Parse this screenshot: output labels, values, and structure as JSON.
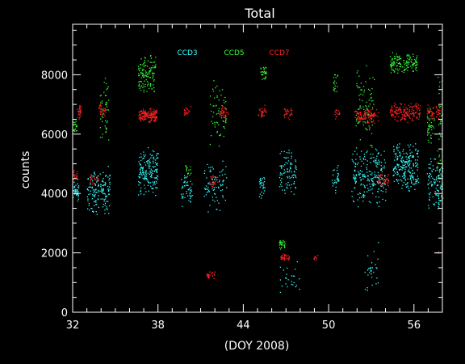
{
  "chart_data": {
    "type": "scatter",
    "title": "Total",
    "xlabel": "(DOY 2008)",
    "ylabel": "counts",
    "xlim": [
      32,
      58
    ],
    "ylim": [
      0,
      9700
    ],
    "x_ticks": [
      32,
      38,
      44,
      50,
      56
    ],
    "y_ticks": [
      0,
      2000,
      4000,
      6000,
      8000
    ],
    "x_tick_labels": [
      "32",
      "38",
      "44",
      "50",
      "56"
    ],
    "y_tick_labels": [
      "0",
      "2000",
      "4000",
      "6000",
      "8000"
    ],
    "legend_placement": "top-center",
    "grid": false,
    "background": "#000000",
    "series": [
      {
        "name": "CCD3",
        "color": "#33ffff",
        "clusters": [
          {
            "x": [
              32.0,
              32.4
            ],
            "y": [
              3600,
              4600
            ],
            "density": 40
          },
          {
            "x": [
              33.0,
              34.6
            ],
            "y": [
              3200,
              5000
            ],
            "density": 150
          },
          {
            "x": [
              36.6,
              38.0
            ],
            "y": [
              3900,
              5600
            ],
            "density": 170
          },
          {
            "x": [
              39.6,
              40.4
            ],
            "y": [
              3500,
              4800
            ],
            "density": 50
          },
          {
            "x": [
              41.2,
              42.8
            ],
            "y": [
              3300,
              5200
            ],
            "density": 80
          },
          {
            "x": [
              45.1,
              45.5
            ],
            "y": [
              3800,
              4900
            ],
            "density": 30
          },
          {
            "x": [
              46.5,
              47.7
            ],
            "y": [
              3900,
              5600
            ],
            "density": 90
          },
          {
            "x": [
              50.2,
              50.7
            ],
            "y": [
              4000,
              5100
            ],
            "density": 30
          },
          {
            "x": [
              51.6,
              54.0
            ],
            "y": [
              3500,
              5600
            ],
            "density": 230
          },
          {
            "x": [
              54.5,
              56.3
            ],
            "y": [
              4000,
              5800
            ],
            "density": 230
          },
          {
            "x": [
              56.9,
              58.0
            ],
            "y": [
              3400,
              5300
            ],
            "density": 110
          },
          {
            "x": [
              52.5,
              53.5
            ],
            "y": [
              300,
              2600
            ],
            "density": 30
          },
          {
            "x": [
              46.5,
              48.0
            ],
            "y": [
              500,
              1800
            ],
            "density": 25
          }
        ]
      },
      {
        "name": "CCD5",
        "color": "#33ff33",
        "clusters": [
          {
            "x": [
              32.0,
              32.3
            ],
            "y": [
              6000,
              6600
            ],
            "density": 20
          },
          {
            "x": [
              33.9,
              34.5
            ],
            "y": [
              5700,
              8000
            ],
            "density": 45
          },
          {
            "x": [
              36.6,
              37.8
            ],
            "y": [
              7300,
              8800
            ],
            "density": 120
          },
          {
            "x": [
              39.9,
              40.3
            ],
            "y": [
              4500,
              5100
            ],
            "density": 15
          },
          {
            "x": [
              41.6,
              42.8
            ],
            "y": [
              5400,
              8000
            ],
            "density": 60
          },
          {
            "x": [
              45.2,
              45.6
            ],
            "y": [
              7800,
              8400
            ],
            "density": 30
          },
          {
            "x": [
              46.5,
              46.9
            ],
            "y": [
              2100,
              2500
            ],
            "density": 30
          },
          {
            "x": [
              50.3,
              50.6
            ],
            "y": [
              7300,
              8100
            ],
            "density": 20
          },
          {
            "x": [
              51.9,
              53.2
            ],
            "y": [
              5200,
              8500
            ],
            "density": 90
          },
          {
            "x": [
              54.3,
              56.2
            ],
            "y": [
              8000,
              8800
            ],
            "density": 140
          },
          {
            "x": [
              56.9,
              57.4
            ],
            "y": [
              5500,
              7000
            ],
            "density": 40
          },
          {
            "x": [
              57.6,
              58.0
            ],
            "y": [
              3000,
              8200
            ],
            "density": 40
          }
        ]
      },
      {
        "name": "CCD7",
        "color": "#ff2222",
        "clusters": [
          {
            "x": [
              32.3,
              32.6
            ],
            "y": [
              6500,
              7000
            ],
            "density": 30
          },
          {
            "x": [
              32.0,
              32.3
            ],
            "y": [
              4400,
              4800
            ],
            "density": 20
          },
          {
            "x": [
              33.2,
              33.8
            ],
            "y": [
              4300,
              4700
            ],
            "density": 30
          },
          {
            "x": [
              33.8,
              34.3
            ],
            "y": [
              6600,
              7100
            ],
            "density": 30
          },
          {
            "x": [
              36.6,
              37.9
            ],
            "y": [
              6400,
              6900
            ],
            "density": 160
          },
          {
            "x": [
              39.8,
              40.3
            ],
            "y": [
              6600,
              7000
            ],
            "density": 20
          },
          {
            "x": [
              41.6,
              42.2
            ],
            "y": [
              4200,
              4700
            ],
            "density": 25
          },
          {
            "x": [
              41.4,
              42.0
            ],
            "y": [
              1100,
              1400
            ],
            "density": 25
          },
          {
            "x": [
              42.3,
              42.9
            ],
            "y": [
              6500,
              7000
            ],
            "density": 40
          },
          {
            "x": [
              45.0,
              45.6
            ],
            "y": [
              6500,
              7000
            ],
            "density": 30
          },
          {
            "x": [
              46.6,
              47.2
            ],
            "y": [
              1700,
              2000
            ],
            "density": 35
          },
          {
            "x": [
              46.8,
              47.4
            ],
            "y": [
              6500,
              7000
            ],
            "density": 30
          },
          {
            "x": [
              48.9,
              49.3
            ],
            "y": [
              1700,
              2000
            ],
            "density": 10
          },
          {
            "x": [
              50.4,
              50.8
            ],
            "y": [
              6500,
              6900
            ],
            "density": 15
          },
          {
            "x": [
              51.8,
              53.5
            ],
            "y": [
              6300,
              6900
            ],
            "density": 110
          },
          {
            "x": [
              53.4,
              54.2
            ],
            "y": [
              4200,
              4700
            ],
            "density": 40
          },
          {
            "x": [
              54.3,
              56.4
            ],
            "y": [
              6400,
              7100
            ],
            "density": 170
          },
          {
            "x": [
              56.9,
              57.8
            ],
            "y": [
              6500,
              7000
            ],
            "density": 50
          },
          {
            "x": [
              57.5,
              58.0
            ],
            "y": [
              1900,
              2100
            ],
            "density": 6
          }
        ]
      }
    ]
  }
}
